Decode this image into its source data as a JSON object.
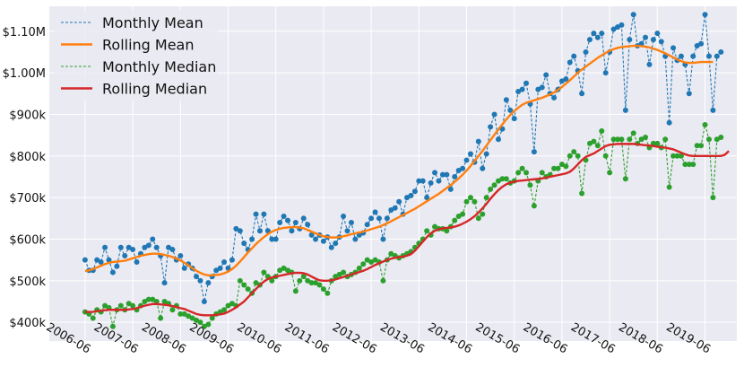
{
  "chart_data": {
    "type": "line",
    "title": "",
    "xlabel": "",
    "ylabel": "",
    "x_tick_labels": [
      "2006-06",
      "2007-06",
      "2008-06",
      "2009-06",
      "2010-06",
      "2011-06",
      "2012-06",
      "2013-06",
      "2014-06",
      "2015-06",
      "2016-06",
      "2017-06",
      "2018-06",
      "2019-06"
    ],
    "y_ticks": [
      400000,
      500000,
      600000,
      700000,
      800000,
      900000,
      1000000,
      1100000
    ],
    "y_tick_labels": [
      "$400k",
      "$500k",
      "$600k",
      "$700k",
      "$800k",
      "$900k",
      "$1.00M",
      "$1.10M"
    ],
    "ylim": [
      355000,
      1160000
    ],
    "x_start": "2006-06",
    "xlim_months": [
      -9,
      164
    ],
    "grid": true,
    "legend_position": "top-left",
    "series": [
      {
        "name": "Monthly Mean",
        "style": "dashed-markers",
        "color": "#1f77b4",
        "values": [
          550000,
          525000,
          525000,
          550000,
          545000,
          580000,
          550000,
          520000,
          535000,
          580000,
          560000,
          580000,
          575000,
          545000,
          565000,
          580000,
          585000,
          600000,
          580000,
          560000,
          495000,
          580000,
          575000,
          550000,
          560000,
          530000,
          540000,
          530000,
          510000,
          500000,
          450000,
          495000,
          510000,
          525000,
          530000,
          545000,
          530000,
          550000,
          625000,
          620000,
          590000,
          575000,
          600000,
          660000,
          620000,
          660000,
          620000,
          600000,
          600000,
          640000,
          655000,
          645000,
          620000,
          640000,
          625000,
          650000,
          635000,
          610000,
          600000,
          610000,
          595000,
          605000,
          580000,
          590000,
          605000,
          655000,
          620000,
          640000,
          600000,
          610000,
          615000,
          635000,
          650000,
          665000,
          650000,
          600000,
          650000,
          670000,
          675000,
          690000,
          660000,
          700000,
          705000,
          715000,
          740000,
          740000,
          700000,
          735000,
          760000,
          740000,
          755000,
          755000,
          720000,
          750000,
          765000,
          770000,
          790000,
          805000,
          785000,
          835000,
          770000,
          805000,
          870000,
          900000,
          840000,
          865000,
          935000,
          910000,
          890000,
          955000,
          960000,
          975000,
          925000,
          810000,
          960000,
          965000,
          995000,
          950000,
          940000,
          960000,
          980000,
          985000,
          1025000,
          1040000,
          1005000,
          950000,
          1050000,
          1080000,
          1095000,
          1085000,
          1095000,
          1000000,
          1050000,
          1105000,
          1110000,
          1115000,
          910000,
          1080000,
          1140000,
          1065000,
          1070000,
          1085000,
          1020000,
          1080000,
          1095000,
          1075000,
          1040000,
          880000,
          1060000,
          1030000,
          1040000,
          1020000,
          950000,
          1040000,
          1065000,
          1070000,
          1140000,
          1040000,
          910000,
          1040000,
          1050000
        ],
        "values_note": ""
      },
      {
        "name": "Rolling Mean",
        "style": "solid",
        "color": "#ff7f0e",
        "values": [
          523000,
          525000,
          528000,
          532000,
          536000,
          540000,
          543000,
          545000,
          546000,
          547000,
          548000,
          551000,
          554000,
          557000,
          560000,
          562000,
          564000,
          565000,
          565000,
          564000,
          562000,
          560000,
          557000,
          553000,
          549000,
          543000,
          537000,
          530000,
          524000,
          519000,
          515000,
          513000,
          513000,
          514000,
          515000,
          518000,
          522000,
          528000,
          536000,
          546000,
          557000,
          568000,
          578000,
          588000,
          597000,
          605000,
          612000,
          618000,
          622000,
          625000,
          627000,
          628000,
          629000,
          629000,
          628000,
          626000,
          622000,
          618000,
          614000,
          610000,
          607000,
          605000,
          604000,
          604000,
          605000,
          607000,
          609000,
          612000,
          614000,
          616000,
          618000,
          621000,
          624000,
          627000,
          630000,
          634000,
          638000,
          643000,
          648000,
          653000,
          658000,
          663000,
          668000,
          673000,
          679000,
          685000,
          691000,
          697000,
          703000,
          709000,
          716000,
          723000,
          730000,
          738000,
          746000,
          755000,
          765000,
          776000,
          788000,
          800000,
          812000,
          825000,
          838000,
          851000,
          864000,
          876000,
          888000,
          899000,
          908000,
          916000,
          923000,
          928000,
          931000,
          934000,
          937000,
          940000,
          944000,
          948000,
          953000,
          959000,
          966000,
          974000,
          982000,
          991000,
          1000000,
          1008000,
          1015000,
          1022000,
          1029000,
          1036000,
          1042000,
          1048000,
          1053000,
          1057000,
          1060000,
          1062000,
          1063000,
          1064000,
          1065000,
          1065000,
          1064000,
          1063000,
          1061000,
          1058000,
          1055000,
          1051000,
          1047000,
          1042000,
          1037000,
          1032000,
          1028000,
          1025000,
          1024000,
          1024000,
          1025000,
          1026000,
          1026000,
          1026000,
          1026000
        ],
        "values_note": ""
      },
      {
        "name": "Monthly Median",
        "style": "dashed-markers",
        "color": "#2ca02c",
        "values": [
          425000,
          420000,
          410000,
          430000,
          425000,
          440000,
          435000,
          390000,
          430000,
          440000,
          430000,
          445000,
          440000,
          430000,
          440000,
          450000,
          455000,
          455000,
          450000,
          410000,
          450000,
          445000,
          430000,
          440000,
          420000,
          420000,
          415000,
          410000,
          405000,
          400000,
          390000,
          395000,
          410000,
          420000,
          425000,
          430000,
          440000,
          445000,
          440000,
          500000,
          490000,
          480000,
          470000,
          495000,
          490000,
          520000,
          510000,
          500000,
          510000,
          525000,
          530000,
          525000,
          520000,
          475000,
          500000,
          510000,
          500000,
          495000,
          495000,
          490000,
          480000,
          470000,
          500000,
          510000,
          515000,
          520000,
          510000,
          515000,
          520000,
          530000,
          540000,
          550000,
          545000,
          550000,
          545000,
          500000,
          550000,
          565000,
          560000,
          555000,
          560000,
          565000,
          570000,
          580000,
          590000,
          600000,
          620000,
          610000,
          630000,
          625000,
          625000,
          620000,
          630000,
          645000,
          655000,
          660000,
          690000,
          700000,
          690000,
          650000,
          660000,
          700000,
          720000,
          730000,
          740000,
          745000,
          745000,
          735000,
          740000,
          760000,
          770000,
          760000,
          730000,
          680000,
          740000,
          760000,
          750000,
          755000,
          770000,
          770000,
          780000,
          775000,
          800000,
          810000,
          800000,
          710000,
          790000,
          830000,
          835000,
          825000,
          860000,
          800000,
          760000,
          840000,
          840000,
          840000,
          745000,
          840000,
          855000,
          830000,
          840000,
          845000,
          820000,
          830000,
          830000,
          820000,
          840000,
          725000,
          800000,
          800000,
          800000,
          780000,
          780000,
          780000,
          825000,
          825000,
          875000,
          840000,
          700000,
          840000,
          845000
        ],
        "values_note": ""
      },
      {
        "name": "Rolling Median",
        "style": "solid",
        "color": "#d62728",
        "values": [
          425000,
          425000,
          425000,
          427000,
          428000,
          429000,
          430000,
          430000,
          430000,
          430000,
          430000,
          431000,
          432000,
          434000,
          437000,
          440000,
          442000,
          444000,
          444000,
          443000,
          442000,
          441000,
          439000,
          437000,
          434000,
          432000,
          428000,
          424000,
          420000,
          418000,
          417000,
          417000,
          417000,
          418000,
          419000,
          421000,
          425000,
          430000,
          436000,
          443000,
          450000,
          460000,
          470000,
          480000,
          490000,
          498000,
          504000,
          508000,
          510000,
          512000,
          514000,
          516000,
          518000,
          519000,
          519000,
          518000,
          515000,
          510000,
          505000,
          501000,
          500000,
          500000,
          501000,
          503000,
          506000,
          509000,
          512000,
          515000,
          518000,
          521000,
          524000,
          528000,
          533000,
          538000,
          542000,
          546000,
          550000,
          553000,
          555000,
          557000,
          558000,
          560000,
          564000,
          572000,
          583000,
          594000,
          605000,
          614000,
          620000,
          624000,
          626000,
          627000,
          628000,
          630000,
          633000,
          637000,
          642000,
          648000,
          655000,
          664000,
          674000,
          685000,
          697000,
          708000,
          718000,
          726000,
          732000,
          736000,
          738000,
          740000,
          741000,
          742000,
          743000,
          744000,
          745000,
          746000,
          748000,
          750000,
          752000,
          754000,
          756000,
          758000,
          762000,
          770000,
          780000,
          790000,
          798000,
          802000,
          806000,
          812000,
          818000,
          824000,
          827000,
          828000,
          829000,
          829000,
          829000,
          829000,
          829000,
          828000,
          827000,
          826000,
          825000,
          824000,
          822000,
          821000,
          820000,
          818000,
          816000,
          812000,
          808000,
          804000,
          801000,
          800000,
          800000,
          800000,
          800000,
          800000,
          800000,
          800000,
          800000,
          803000,
          812000
        ],
        "values_note": ""
      }
    ]
  }
}
